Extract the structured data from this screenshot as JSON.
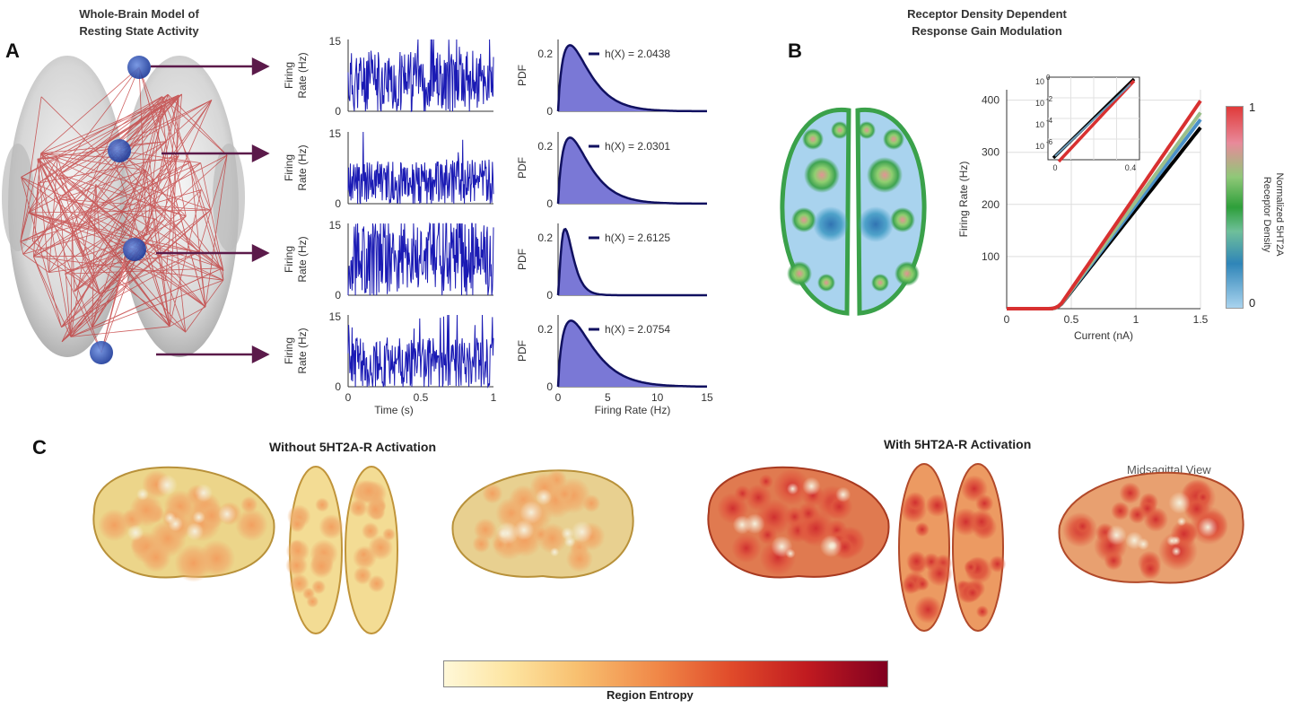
{
  "panel_a": {
    "letter": "A",
    "title_line1": "Whole-Brain Model of",
    "title_line2": "Resting State Activity"
  },
  "panel_b": {
    "letter": "B",
    "title_line1": "Receptor Density Dependent",
    "title_line2": "Response Gain Modulation"
  },
  "panel_c": {
    "letter": "C",
    "left_title": "Without 5HT2A-R Activation",
    "right_title": "With 5HT2A-R Activation",
    "midsagittal_label": "Midsagittal View",
    "colorbar_label": "Region Entropy"
  },
  "colors": {
    "trace": "#1a1ab4",
    "pdf_fill": "#7a78d6",
    "pdf_line": "#101060",
    "arrow": "#5b1a4a",
    "network": "#c03030"
  },
  "chart_data": [
    {
      "type": "line",
      "name": "firing-rate-traces",
      "ylabel_line1": "Firing",
      "ylabel_line2": "Rate (Hz)",
      "xlabel": "Time (s)",
      "ylim": [
        0,
        15
      ],
      "xlim": [
        0,
        1
      ],
      "y_ticks": [
        "0",
        "15"
      ],
      "x_ticks": [
        "0",
        "0.5",
        "1"
      ],
      "series": [
        {
          "name": "region-1",
          "mean": 5.5
        },
        {
          "name": "region-2",
          "mean": 4.0
        },
        {
          "name": "region-3",
          "mean": 7.0
        },
        {
          "name": "region-4",
          "mean": 4.5
        }
      ]
    },
    {
      "type": "area",
      "name": "firing-rate-pdfs",
      "ylabel": "PDF",
      "xlabel": "Firing Rate (Hz)",
      "xlim": [
        0,
        15
      ],
      "ylim": [
        0,
        0.25
      ],
      "y_ticks": [
        "0",
        "0.2"
      ],
      "x_ticks": [
        "0",
        "5",
        "10",
        "15"
      ],
      "series": [
        {
          "name": "region-1",
          "entropy_label": "h(X) = 2.0438",
          "peak_x": 1.2
        },
        {
          "name": "region-2",
          "entropy_label": "h(X) = 2.0301",
          "peak_x": 1.2
        },
        {
          "name": "region-3",
          "entropy_label": "h(X) = 2.6125",
          "peak_x": 0.7
        },
        {
          "name": "region-4",
          "entropy_label": "h(X) = 2.0754",
          "peak_x": 1.3
        }
      ]
    },
    {
      "type": "line",
      "name": "gain-curves",
      "xlabel": "Current (nA)",
      "ylabel": "Firing Rate (Hz)",
      "xlim": [
        0,
        1.5
      ],
      "ylim": [
        0,
        420
      ],
      "x_ticks": [
        "0",
        "0.5",
        "1",
        "1.5"
      ],
      "y_ticks": [
        "100",
        "200",
        "300",
        "400"
      ],
      "series": [
        {
          "name": "density-0",
          "color": "#000000",
          "end_y": 340
        },
        {
          "name": "density-low",
          "color": "#4a90c8",
          "end_y": 355
        },
        {
          "name": "density-mid",
          "color": "#9bbf8a",
          "end_y": 368
        },
        {
          "name": "density-1",
          "color": "#d83030",
          "end_y": 390
        }
      ],
      "inset": {
        "x_ticks": [
          "0",
          "0.4"
        ],
        "y_ticks_base": [
          "10",
          "10",
          "10",
          "10"
        ],
        "y_ticks_exp": [
          "0",
          "-2",
          "-4",
          "-6"
        ]
      },
      "colorbar": {
        "label_line1": "Normalized 5HT2A",
        "label_line2": "Receptor Density",
        "ticks": [
          "1",
          "0"
        ]
      }
    }
  ]
}
